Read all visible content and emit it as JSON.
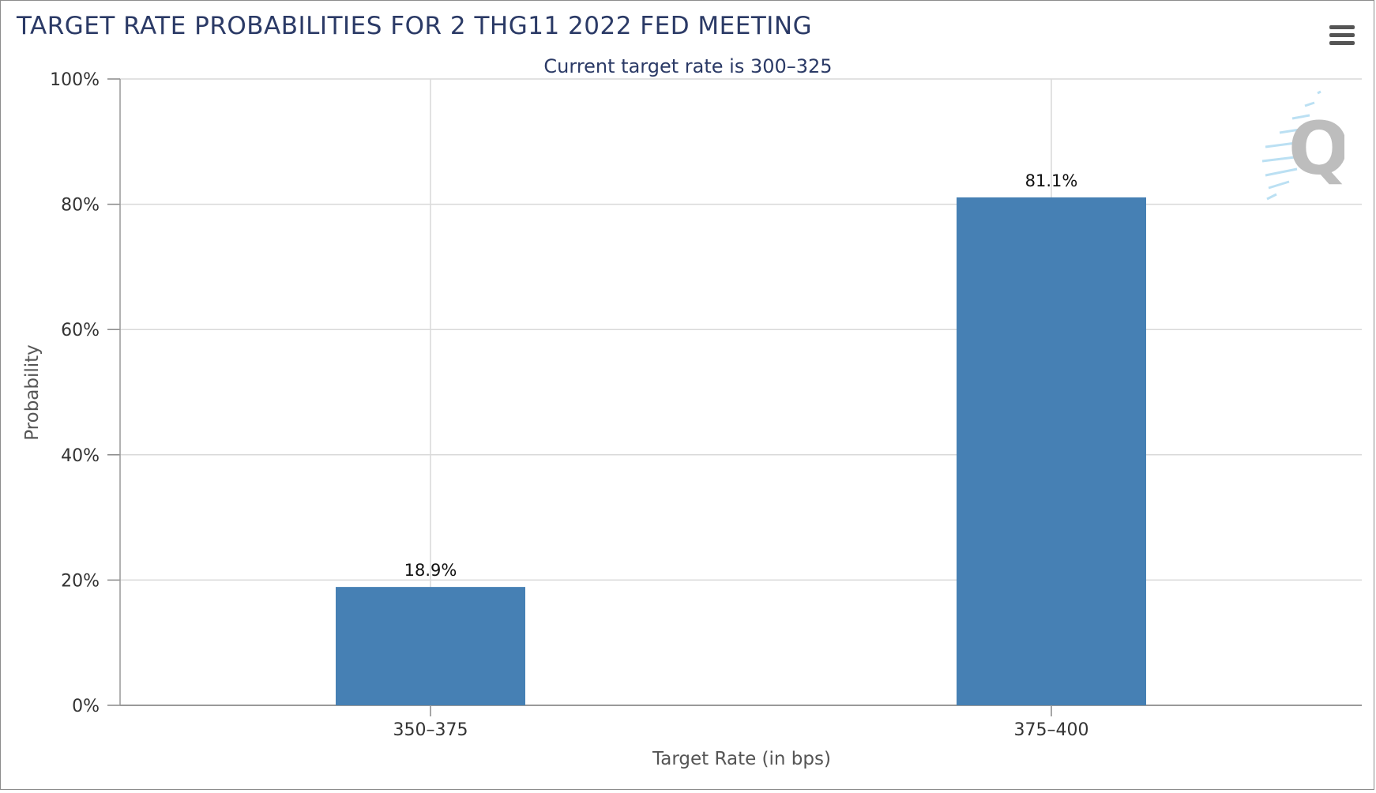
{
  "toolbar": {
    "menu_icon": "hamburger-menu-icon"
  },
  "watermark": {
    "icon": "q-logo-icon",
    "letter": "Q"
  },
  "colors": {
    "bar": "#4680b4",
    "title": "#2b3a66",
    "grid": "#d9d9d9",
    "axis_text": "#333333"
  },
  "chart_data": {
    "type": "bar",
    "title": "TARGET RATE PROBABILITIES FOR 2 THG11 2022 FED MEETING",
    "subtitle": "Current target rate is 300–325",
    "xlabel": "Target Rate (in bps)",
    "ylabel": "Probability",
    "categories": [
      "350–375",
      "375–400"
    ],
    "values": [
      18.9,
      81.1
    ],
    "data_labels": [
      "18.9%",
      "81.1%"
    ],
    "ylim": [
      0,
      100
    ],
    "yticks": [
      0,
      20,
      40,
      60,
      80,
      100
    ],
    "ytick_labels": [
      "0%",
      "20%",
      "40%",
      "60%",
      "80%",
      "100%"
    ],
    "grid": true,
    "legend": "none"
  }
}
